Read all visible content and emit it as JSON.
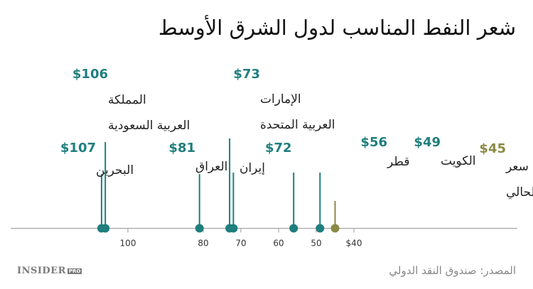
{
  "title": "شعر النفط المناسب لدول الشرق الأوسط",
  "source": "المصدر: صندوق النقد الدولي",
  "logo": {
    "main": "INSIDER",
    "pro": "PRO"
  },
  "colors": {
    "teal": "#1f7e7e",
    "olive": "#8a8a45",
    "axis": "#999999"
  },
  "chart_data": {
    "type": "scatter",
    "title": "شعر النفط المناسب لدول الشرق الأوسط",
    "xlabel": "",
    "ylabel": "",
    "xlim": [
      38,
      122
    ],
    "x_reversed": true,
    "x_ticks": [
      {
        "value": 100,
        "label": "100"
      },
      {
        "value": 80,
        "label": "80"
      },
      {
        "value": 70,
        "label": "70"
      },
      {
        "value": 60,
        "label": "60"
      },
      {
        "value": 50,
        "label": "50"
      },
      {
        "value": 40,
        "label": "$40"
      }
    ],
    "points": [
      {
        "name": "البحرين",
        "value": 107,
        "value_label": "$107",
        "lines": [
          "البحرين"
        ],
        "color": "teal"
      },
      {
        "name": "المملكة العربية السعودية",
        "value": 106,
        "value_label": "$106",
        "lines": [
          "المملكة",
          "العربية السعودية"
        ],
        "color": "teal"
      },
      {
        "name": "العراق",
        "value": 81,
        "value_label": "$81",
        "lines": [
          "العراق"
        ],
        "color": "teal"
      },
      {
        "name": "الإمارات العربية المتحدة",
        "value": 73,
        "value_label": "$73",
        "lines": [
          "الإمارات",
          "العربية المتحدة"
        ],
        "color": "teal"
      },
      {
        "name": "إيران",
        "value": 72,
        "value_label": "$72",
        "lines": [
          "إيران"
        ],
        "color": "teal"
      },
      {
        "name": "قطر",
        "value": 56,
        "value_label": "$56",
        "lines": [
          "قطر"
        ],
        "color": "teal"
      },
      {
        "name": "الكويت",
        "value": 49,
        "value_label": "$49",
        "lines": [
          "الكويت"
        ],
        "color": "teal"
      },
      {
        "name": "سعر النفط الحالي",
        "value": 45,
        "value_label": "$45",
        "lines": [
          "سعر",
          "النفط الحالي"
        ],
        "color": "olive"
      }
    ]
  }
}
